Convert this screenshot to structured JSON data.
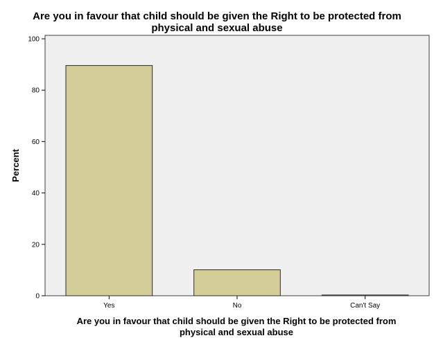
{
  "chart_data": {
    "type": "bar",
    "title_lines": [
      "Are you in favour that  child should be given the  Right to be protected from",
      "physical and sexual abuse"
    ],
    "xlabel_lines": [
      "Are you in favour that  child should be given the  Right to be protected from",
      "physical and sexual abuse"
    ],
    "ylabel": "Percent",
    "categories": [
      "Yes",
      "No",
      "Can't Say"
    ],
    "values": [
      89.6,
      10.1,
      0.3
    ],
    "ylim": [
      0,
      100
    ],
    "yticks": [
      0,
      20,
      40,
      60,
      80,
      100
    ],
    "ytick_labels": [
      "0",
      "20",
      "40",
      "60",
      "80",
      "100"
    ],
    "grid": false,
    "colors": {
      "bar_fill": "#d3ce97",
      "bar_stroke": "#2b2b2b",
      "plot_bg": "#efefef",
      "frame": "#3c3c3c"
    }
  }
}
